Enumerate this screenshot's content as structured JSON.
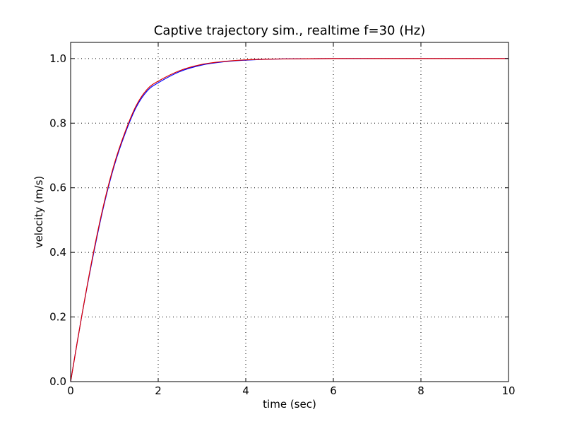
{
  "chart_data": {
    "type": "line",
    "title": "Captive trajectory sim., realtime f=30 (Hz)",
    "xlabel": "time (sec)",
    "ylabel": "velocity (m/s)",
    "xlim": [
      0,
      10
    ],
    "ylim": [
      0.0,
      1.05
    ],
    "xticks": [
      0,
      2,
      4,
      6,
      8,
      10
    ],
    "xtick_labels": [
      "0",
      "2",
      "4",
      "6",
      "8",
      "10"
    ],
    "yticks": [
      0.0,
      0.2,
      0.4,
      0.6,
      0.8,
      1.0
    ],
    "ytick_labels": [
      "0.0",
      "0.2",
      "0.4",
      "0.6",
      "0.8",
      "1.0"
    ],
    "grid": true,
    "series": [
      {
        "color": "#0000ff",
        "x": [
          0,
          0.25,
          0.5,
          0.75,
          1.0,
          1.25,
          1.5,
          1.75,
          2.0,
          2.5,
          3.0,
          3.5,
          4.0,
          4.5,
          5.0,
          6.0,
          7.0,
          8.0,
          9.0,
          10.0
        ],
        "values": [
          0.0,
          0.2,
          0.38,
          0.54,
          0.67,
          0.77,
          0.85,
          0.9,
          0.925,
          0.96,
          0.98,
          0.99,
          0.995,
          0.998,
          0.999,
          1.0,
          1.0,
          1.0,
          1.0,
          1.0
        ]
      },
      {
        "color": "#dd0000",
        "x": [
          0,
          0.25,
          0.5,
          0.75,
          1.0,
          1.25,
          1.5,
          1.75,
          2.0,
          2.5,
          3.0,
          3.5,
          4.0,
          4.5,
          5.0,
          6.0,
          7.0,
          8.0,
          9.0,
          10.0
        ],
        "values": [
          0.0,
          0.2,
          0.385,
          0.545,
          0.675,
          0.775,
          0.855,
          0.905,
          0.93,
          0.963,
          0.982,
          0.991,
          0.996,
          0.998,
          0.999,
          1.0,
          1.0,
          1.0,
          1.0,
          1.0
        ]
      }
    ]
  }
}
